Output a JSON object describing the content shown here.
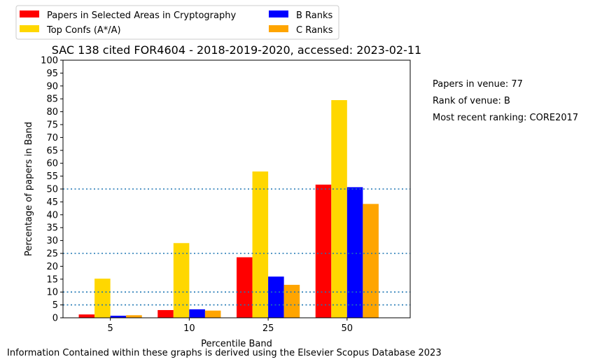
{
  "chart_data": {
    "type": "bar",
    "title": "SAC 138 cited FOR4604 - 2018-2019-2020, accessed: 2023-02-11",
    "xlabel": "Percentile Band",
    "ylabel": "Percentage of papers in Band",
    "categories": [
      "5",
      "10",
      "25",
      "50"
    ],
    "ylim": [
      0,
      100
    ],
    "yticks": [
      "0",
      "5",
      "10",
      "15",
      "20",
      "25",
      "30",
      "35",
      "40",
      "45",
      "50",
      "55",
      "60",
      "65",
      "70",
      "75",
      "80",
      "85",
      "90",
      "95",
      "100"
    ],
    "reference_lines": [
      5,
      10,
      25,
      50
    ],
    "grid": false,
    "legend_position": "top-left",
    "series": [
      {
        "name": "Papers in Selected Areas in Cryptography",
        "color": "#ff0000",
        "values": [
          1.3,
          3.0,
          23.5,
          51.7
        ]
      },
      {
        "name": "Top Confs (A*/A)",
        "color": "#ffd700",
        "values": [
          15.2,
          29.0,
          56.8,
          84.5
        ]
      },
      {
        "name": "B Ranks",
        "color": "#0000ff",
        "values": [
          0.8,
          3.3,
          16.0,
          50.7
        ]
      },
      {
        "name": "C Ranks",
        "color": "#ffa500",
        "values": [
          1.0,
          2.8,
          12.8,
          44.2
        ]
      }
    ]
  },
  "side_info": {
    "papers_in_venue": "Papers in venue: 77",
    "rank_of_venue": "Rank of venue: B",
    "most_recent_ranking": "Most recent ranking: CORE2017"
  },
  "footer": "Information Contained within these graphs is derived using the Elsevier Scopus Database 2023",
  "colors": {
    "reference_line": "#1f77b4"
  }
}
